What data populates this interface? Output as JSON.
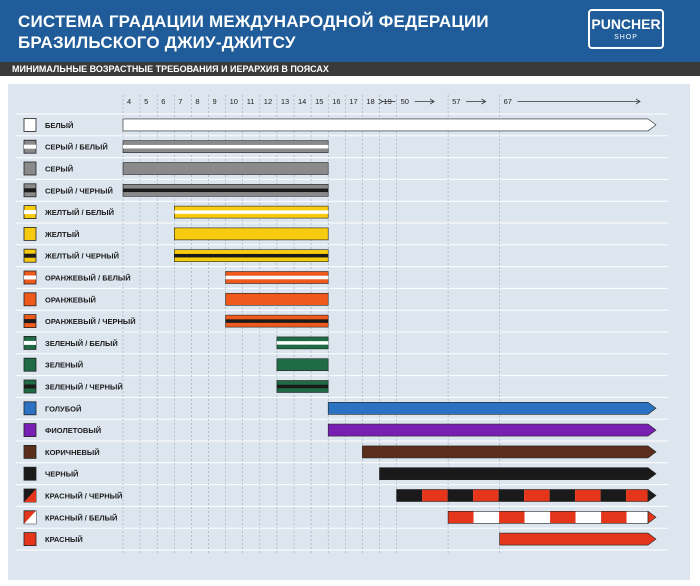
{
  "header": {
    "title_line1": "СИСТЕМА ГРАДАЦИИ МЕЖДУНАРОДНОЙ ФЕДЕРАЦИИ",
    "title_line2": "БРАЗИЛЬСКОГО ДЖИУ-ДЖИТСУ",
    "subtitle": "МИНИМАЛЬНЫЕ ВОЗРАСТНЫЕ ТРЕБОВАНИЯ И ИЕРАРХИЯ В ПОЯСАХ",
    "logo_main": "PUNCHER",
    "logo_sub": "SHOP"
  },
  "colors": {
    "header_bg": "#1f5c99",
    "panel_bg": "#dde6ef",
    "white": "#ffffff",
    "gray": "#8a8a8a",
    "yellow": "#f7cc10",
    "orange": "#ef5a1c",
    "green": "#1f6b45",
    "blue": "#2b73c2",
    "purple": "#7a1fb4",
    "brown": "#5a2e1b",
    "black": "#1a1a1a",
    "red": "#e5361c"
  },
  "chart_data": {
    "type": "table",
    "x_ticks": [
      "4",
      "5",
      "6",
      "7",
      "8",
      "9",
      "10",
      "11",
      "12",
      "13",
      "14",
      "15",
      "16",
      "17",
      "18",
      "19",
      "50",
      "57",
      "67"
    ],
    "belts": [
      {
        "label": "БЕЛЫЙ",
        "base": "white",
        "stripe": null,
        "start_age": "4",
        "open_ended": true
      },
      {
        "label": "СЕРЫЙ / БЕЛЫЙ",
        "base": "gray",
        "stripe": "white",
        "start_age": "4",
        "end_age": "15"
      },
      {
        "label": "СЕРЫЙ",
        "base": "gray",
        "stripe": null,
        "start_age": "4",
        "end_age": "15"
      },
      {
        "label": "СЕРЫЙ / ЧЕРНЫЙ",
        "base": "gray",
        "stripe": "black",
        "start_age": "4",
        "end_age": "15"
      },
      {
        "label": "ЖЕЛТЫЙ / БЕЛЫЙ",
        "base": "yellow",
        "stripe": "white",
        "start_age": "7",
        "end_age": "15"
      },
      {
        "label": "ЖЕЛТЫЙ",
        "base": "yellow",
        "stripe": null,
        "start_age": "7",
        "end_age": "15"
      },
      {
        "label": "ЖЕЛТЫЙ / ЧЕРНЫЙ",
        "base": "yellow",
        "stripe": "black",
        "start_age": "7",
        "end_age": "15"
      },
      {
        "label": "ОРАНЖЕВЫЙ / БЕЛЫЙ",
        "base": "orange",
        "stripe": "white",
        "start_age": "10",
        "end_age": "15"
      },
      {
        "label": "ОРАНЖЕВЫЙ",
        "base": "orange",
        "stripe": null,
        "start_age": "10",
        "end_age": "15"
      },
      {
        "label": "ОРАНЖЕВЫЙ / ЧЕРНЫЙ",
        "base": "orange",
        "stripe": "black",
        "start_age": "10",
        "end_age": "15"
      },
      {
        "label": "ЗЕЛЕНЫЙ / БЕЛЫЙ",
        "base": "green",
        "stripe": "white",
        "start_age": "13",
        "end_age": "15"
      },
      {
        "label": "ЗЕЛЕНЫЙ",
        "base": "green",
        "stripe": null,
        "start_age": "13",
        "end_age": "15"
      },
      {
        "label": "ЗЕЛЕНЫЙ / ЧЕРНЫЙ",
        "base": "green",
        "stripe": "black",
        "start_age": "13",
        "end_age": "15"
      },
      {
        "label": "ГОЛУБОЙ",
        "base": "blue",
        "stripe": null,
        "start_age": "16",
        "open_ended": true
      },
      {
        "label": "ФИОЛЕТОВЫЙ",
        "base": "purple",
        "stripe": null,
        "start_age": "16",
        "open_ended": true
      },
      {
        "label": "КОРИЧНЕВЫЙ",
        "base": "brown",
        "stripe": null,
        "start_age": "18",
        "open_ended": true
      },
      {
        "label": "ЧЕРНЫЙ",
        "base": "black",
        "stripe": null,
        "start_age": "19",
        "open_ended": true
      },
      {
        "label": "КРАСНЫЙ / ЧЕРНЫЙ",
        "base": "black",
        "pattern": [
          "black",
          "red"
        ],
        "start_age": "50",
        "open_ended": true
      },
      {
        "label": "КРАСНЫЙ / БЕЛЫЙ",
        "base": "red",
        "pattern": [
          "red",
          "white"
        ],
        "start_age": "57",
        "open_ended": true
      },
      {
        "label": "КРАСНЫЙ",
        "base": "red",
        "stripe": null,
        "start_age": "67",
        "open_ended": true
      }
    ]
  }
}
